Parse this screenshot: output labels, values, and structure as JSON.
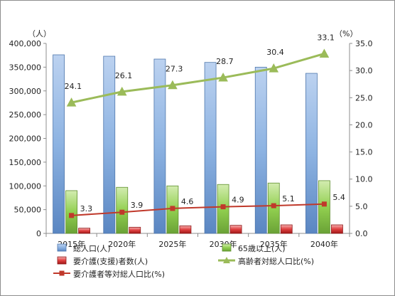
{
  "chart_data": {
    "type": "bar",
    "categories": [
      "2015年",
      "2020年",
      "2025年",
      "2030年",
      "2035年",
      "2040年"
    ],
    "y_left": {
      "unit_label": "（人）",
      "min": 0,
      "max": 400000,
      "step": 50000,
      "tick_labels": [
        "0",
        "50,000",
        "100,000",
        "150,000",
        "200,000",
        "250,000",
        "300,000",
        "350,000",
        "400,000"
      ]
    },
    "y_right": {
      "unit_label": "（%）",
      "min": 0,
      "max": 35,
      "step": 5,
      "tick_labels": [
        "0.0",
        "5.0",
        "10.0",
        "15.0",
        "20.0",
        "25.0",
        "30.0",
        "35.0"
      ]
    },
    "series": [
      {
        "name": "総人口(人)",
        "type": "bar",
        "axis": "left",
        "color": "#8db3e2",
        "values": [
          376000,
          373000,
          367000,
          360000,
          350000,
          337000
        ]
      },
      {
        "name": "65歳以上(人)",
        "type": "bar",
        "axis": "left",
        "color": "#92d050",
        "values": [
          90000,
          97000,
          100000,
          103000,
          106000,
          111000
        ]
      },
      {
        "name": "要介護(支援)者数(人)",
        "type": "bar",
        "axis": "left",
        "color": "#e04040",
        "values": [
          11000,
          13000,
          16000,
          17000,
          18000,
          18000
        ]
      },
      {
        "name": "高齢者対総人口比(%)",
        "type": "line",
        "axis": "right",
        "color": "#9bbb59",
        "marker": "triangle",
        "values": [
          24.1,
          26.1,
          27.3,
          28.7,
          30.4,
          33.1
        ],
        "labels": [
          "24.1",
          "26.1",
          "27.3",
          "28.7",
          "30.4",
          "33.1"
        ]
      },
      {
        "name": "要介護者等対総人口比(%)",
        "type": "line",
        "axis": "right",
        "color": "#c0392b",
        "marker": "square",
        "values": [
          3.3,
          3.9,
          4.6,
          4.9,
          5.1,
          5.4
        ],
        "labels": [
          "3.3",
          "3.9",
          "4.6",
          "4.9",
          "5.1",
          "5.4"
        ]
      }
    ],
    "gridlines": false,
    "legend_position": "bottom"
  }
}
